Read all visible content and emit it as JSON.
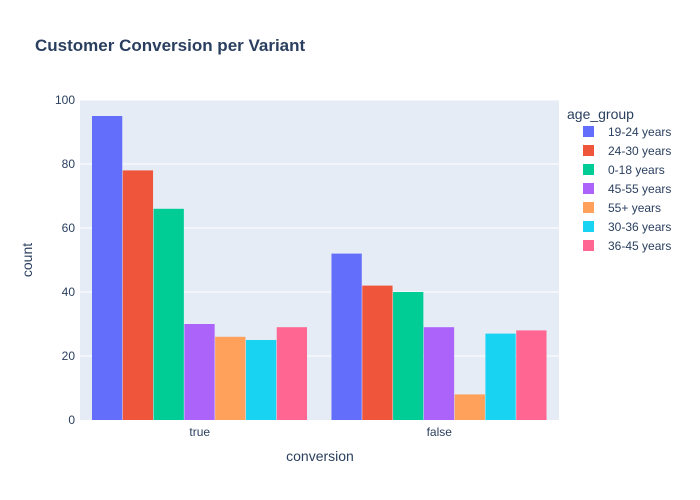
{
  "chart_data": {
    "type": "bar",
    "title": "Customer Conversion per Variant",
    "xlabel": "conversion",
    "ylabel": "count",
    "categories": [
      "true",
      "false"
    ],
    "ylim": [
      0,
      100
    ],
    "yticks": [
      0,
      20,
      40,
      60,
      80,
      100
    ],
    "grid": true,
    "legend_title": "age_group",
    "legend_position": "right",
    "background": "#e5ecf6",
    "series": [
      {
        "name": "19-24 years",
        "color": "#636efa",
        "values": [
          95,
          52
        ]
      },
      {
        "name": "24-30 years",
        "color": "#ef553b",
        "values": [
          78,
          42
        ]
      },
      {
        "name": "0-18 years",
        "color": "#00cc96",
        "values": [
          66,
          40
        ]
      },
      {
        "name": "45-55 years",
        "color": "#ab63fa",
        "values": [
          30,
          29
        ]
      },
      {
        "name": "55+ years",
        "color": "#ffa15a",
        "values": [
          26,
          8
        ]
      },
      {
        "name": "30-36 years",
        "color": "#19d3f3",
        "values": [
          25,
          27
        ]
      },
      {
        "name": "36-45 years",
        "color": "#ff6692",
        "values": [
          29,
          28
        ]
      }
    ]
  }
}
